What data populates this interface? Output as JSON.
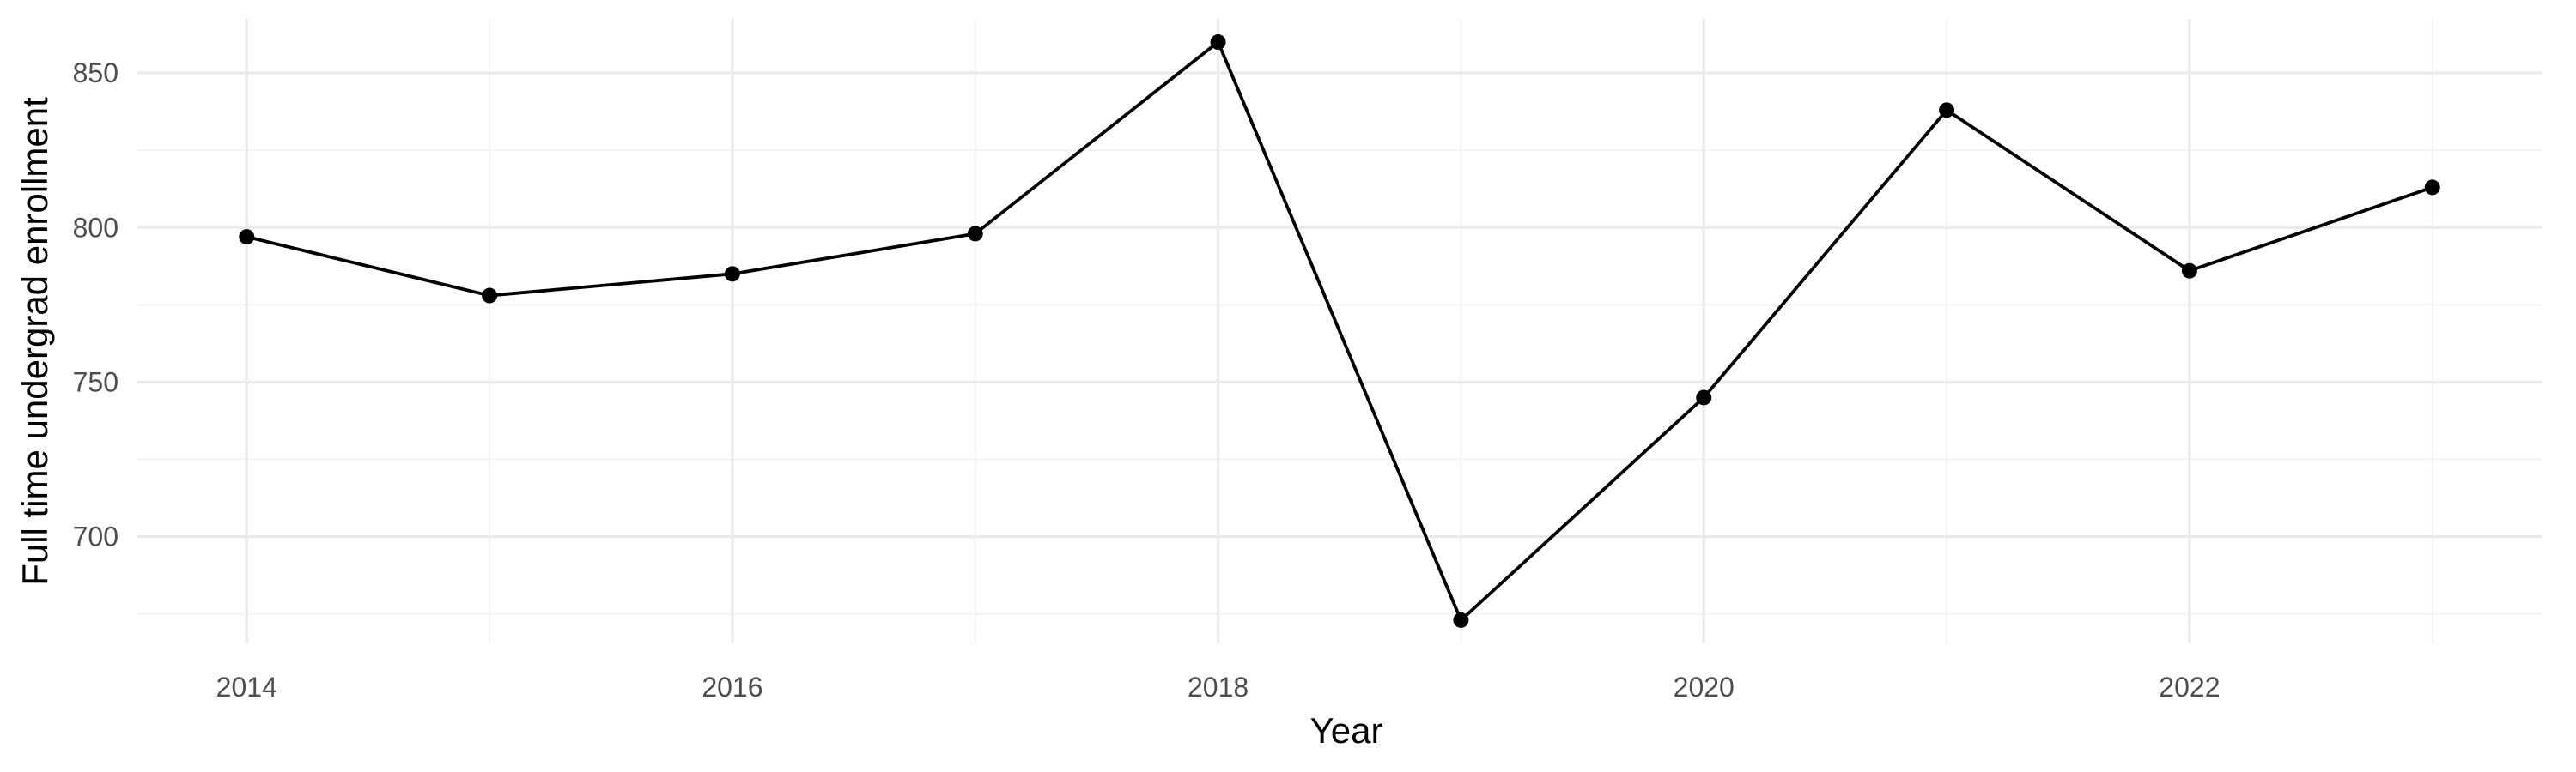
{
  "chart_data": {
    "type": "line",
    "title": "",
    "xlabel": "Year",
    "ylabel": "Full time undergrad enrollment",
    "x": [
      2014,
      2015,
      2016,
      2017,
      2018,
      2019,
      2020,
      2021,
      2022,
      2023
    ],
    "series": [
      {
        "values": [
          797,
          778,
          785,
          798,
          860,
          673,
          745,
          838,
          786,
          813
        ]
      }
    ],
    "xlim": [
      2013.55,
      2023.45
    ],
    "ylim": [
      665.5,
      867.5
    ],
    "x_major_ticks": [
      2014,
      2016,
      2018,
      2020,
      2022
    ],
    "x_minor_ticks": [
      2015,
      2017,
      2019,
      2021,
      2023
    ],
    "y_major_ticks": [
      700,
      750,
      800,
      850
    ],
    "y_minor_ticks": [
      675,
      725,
      775,
      825
    ],
    "x_tick_labels": [
      "2014",
      "2016",
      "2018",
      "2020",
      "2022"
    ],
    "y_tick_labels": [
      "700",
      "750",
      "800",
      "850"
    ],
    "grid": true,
    "legend": "none",
    "colors": {
      "line": "#000000",
      "points": "#000000",
      "grid_major": "#ebebeb",
      "grid_minor": "#f3f3f3",
      "tick_text": "#4d4d4d",
      "axis_title": "#000000",
      "background": "#ffffff"
    }
  }
}
